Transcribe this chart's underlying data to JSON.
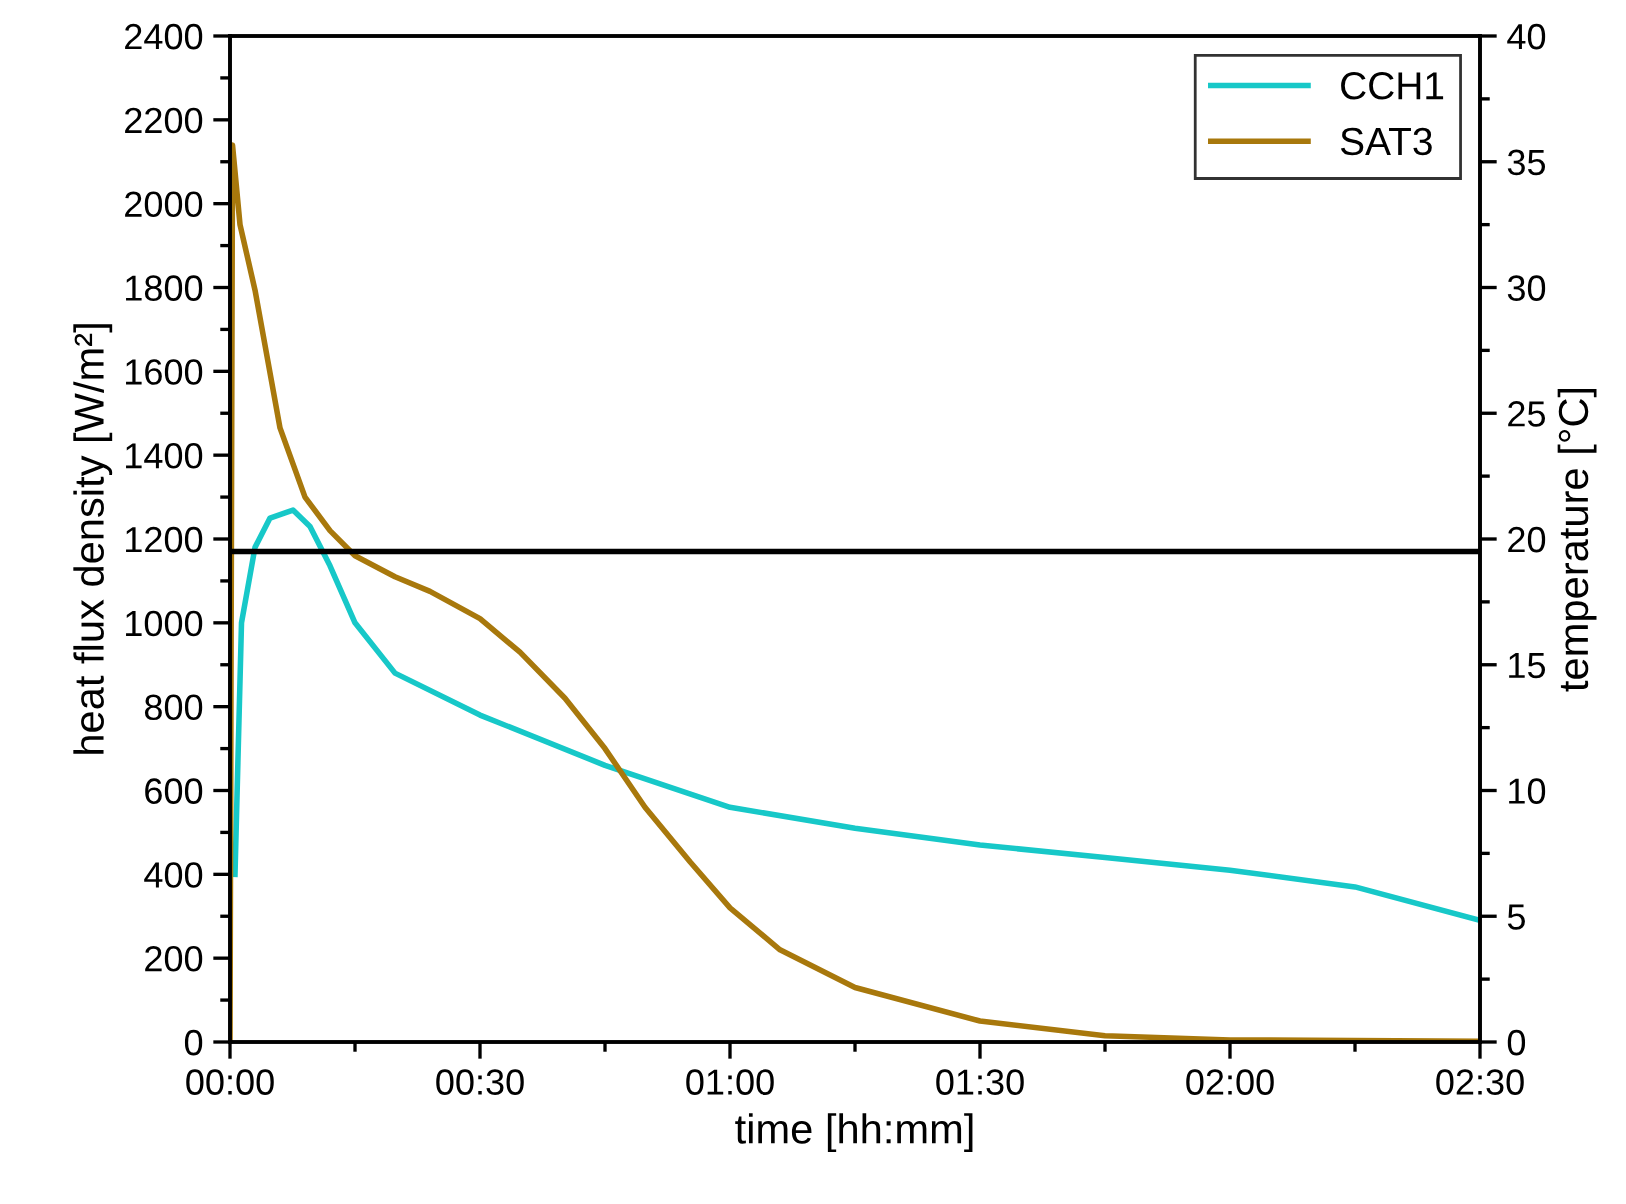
{
  "chart_data": {
    "type": "line",
    "xlabel": "time [hh:mm]",
    "ylabel": "heat flux density [W/m²]",
    "y2label": "temperature [°C]",
    "xlim": [
      0,
      2.5
    ],
    "xticks": [
      {
        "value": 0,
        "label": "00:00"
      },
      {
        "value": 0.5,
        "label": "00:30"
      },
      {
        "value": 1,
        "label": "01:00"
      },
      {
        "value": 1.5,
        "label": "01:30"
      },
      {
        "value": 2,
        "label": "02:00"
      },
      {
        "value": 2.5,
        "label": "02:30"
      }
    ],
    "ylim": [
      0,
      2400
    ],
    "yticks": [
      0,
      200,
      400,
      600,
      800,
      1000,
      1200,
      1400,
      1600,
      1800,
      2000,
      2200,
      2400
    ],
    "y2lim": [
      0,
      40
    ],
    "y2ticks": [
      0,
      5,
      10,
      15,
      20,
      25,
      30,
      35,
      40
    ],
    "legend": "top right",
    "grid": false,
    "series": [
      {
        "name": "CCH1",
        "color": "#17c8c8",
        "x": [
          0.01,
          0.023,
          0.05,
          0.08,
          0.126,
          0.16,
          0.2,
          0.25,
          0.33,
          0.5,
          0.75,
          1.0,
          1.25,
          1.5,
          1.75,
          2.0,
          2.25,
          2.5
        ],
        "values": [
          400,
          1000,
          1180,
          1250,
          1269,
          1230,
          1136,
          1000,
          880,
          780,
          660,
          560,
          510,
          470,
          440,
          410,
          370,
          290
        ]
      },
      {
        "name": "SAT3",
        "color": "#a8780c",
        "x": [
          0,
          0.005,
          0.02,
          0.05,
          0.1,
          0.15,
          0.2,
          0.25,
          0.33,
          0.4,
          0.5,
          0.58,
          0.67,
          0.75,
          0.83,
          0.92,
          1.0,
          1.1,
          1.25,
          1.5,
          1.75,
          2.0,
          2.5
        ],
        "values": [
          0,
          2140,
          1950,
          1794,
          1465,
          1300,
          1220,
          1160,
          1110,
          1075,
          1010,
          930,
          820,
          700,
          560,
          430,
          320,
          220,
          130,
          50,
          15,
          5,
          2
        ]
      },
      {
        "color": "#000000",
        "axis": "y2",
        "x": [
          0,
          2.5
        ],
        "values": [
          19.5,
          19.5
        ]
      }
    ]
  }
}
